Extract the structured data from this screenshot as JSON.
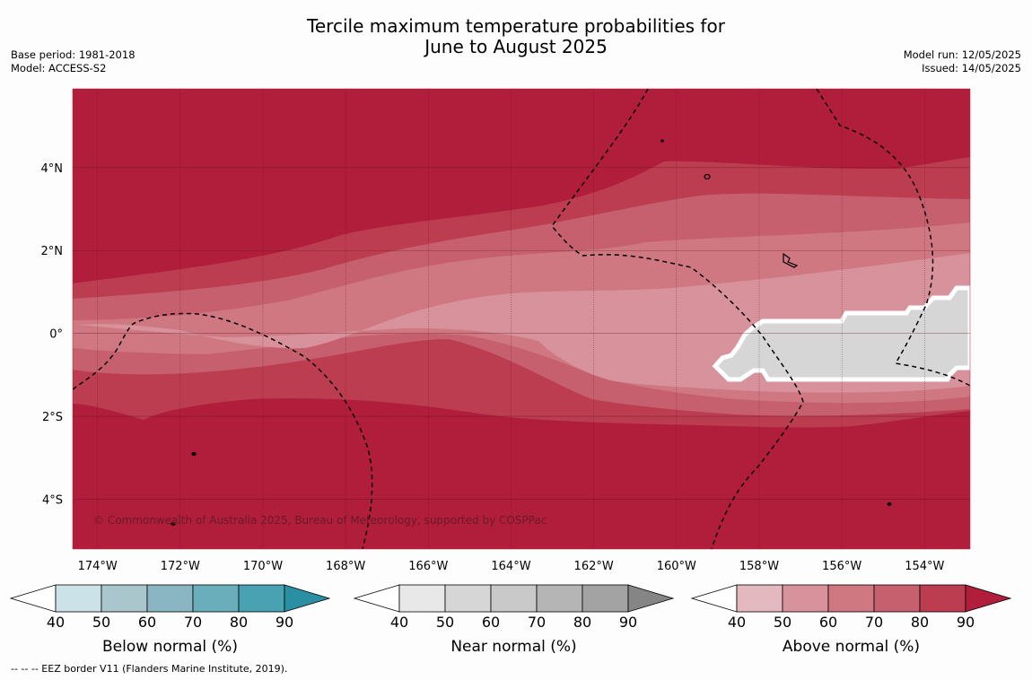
{
  "title": {
    "line1": "Tercile maximum temperature probabilities for",
    "line2": "June to August 2025"
  },
  "meta_left": {
    "base_period": "Base period: 1981-2018",
    "model": "Model: ACCESS-S2"
  },
  "meta_right": {
    "model_run": "Model run: 12/05/2025",
    "issued": "Issued: 14/05/2025"
  },
  "map": {
    "lat_range": [
      -5.2,
      5.9
    ],
    "lon_range": [
      -174.6,
      -152.9
    ],
    "lat_ticks": [
      {
        "value": 4,
        "label": "4°N"
      },
      {
        "value": 2,
        "label": "2°N"
      },
      {
        "value": 0,
        "label": "0°"
      },
      {
        "value": -2,
        "label": "2°S"
      },
      {
        "value": -4,
        "label": "4°S"
      }
    ],
    "lon_ticks": [
      {
        "value": -174,
        "label": "174°W"
      },
      {
        "value": -172,
        "label": "172°W"
      },
      {
        "value": -170,
        "label": "170°W"
      },
      {
        "value": -168,
        "label": "168°W"
      },
      {
        "value": -166,
        "label": "166°W"
      },
      {
        "value": -164,
        "label": "164°W"
      },
      {
        "value": -162,
        "label": "162°W"
      },
      {
        "value": -160,
        "label": "160°W"
      },
      {
        "value": -158,
        "label": "158°W"
      },
      {
        "value": -156,
        "label": "156°W"
      },
      {
        "value": -154,
        "label": "154°W"
      }
    ],
    "copyright": "© Commonwealth of Australia 2025, Bureau of Meteorology, supported by COSPPac",
    "dominant_category": "Above normal",
    "dominant_probability_min": 80,
    "near_normal_region_probability": "40-50",
    "grid": true,
    "eez_border_style": "dashed"
  },
  "colorbars": [
    {
      "label": "Below normal (%)",
      "ticks": [
        "40",
        "50",
        "60",
        "70",
        "80",
        "90"
      ],
      "colors": [
        "#ffffff",
        "#cbe2e8",
        "#a8c6cc",
        "#8ab6c3",
        "#6aaebc",
        "#48a2b2",
        "#2b8fa3"
      ]
    },
    {
      "label": "Near normal (%)",
      "ticks": [
        "40",
        "50",
        "60",
        "70",
        "80",
        "90"
      ],
      "colors": [
        "#ffffff",
        "#e8e8e8",
        "#d6d6d6",
        "#c9c9c9",
        "#b5b5b5",
        "#a3a3a3",
        "#858585"
      ]
    },
    {
      "label": "Above normal (%)",
      "ticks": [
        "40",
        "50",
        "60",
        "70",
        "80",
        "90"
      ],
      "colors": [
        "#ffffff",
        "#e3b9bf",
        "#d8929c",
        "#cf7882",
        "#c6606e",
        "#bc3d50",
        "#b01e3b"
      ]
    }
  ],
  "footnote": "--  --  -- EEZ border V11 (Flanders Marine Institute, 2019)."
}
